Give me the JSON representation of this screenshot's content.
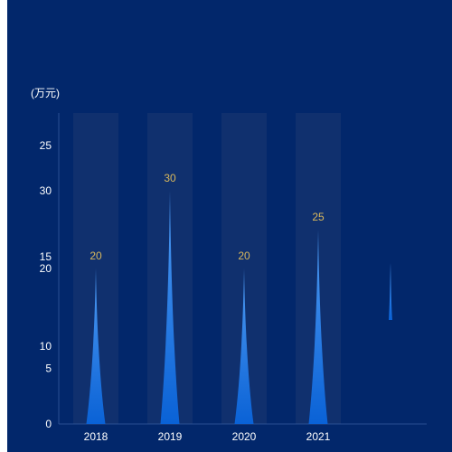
{
  "chart_data": {
    "type": "bar",
    "unit_label": "(万元)",
    "categories": [
      "2018",
      "2019",
      "2020",
      "2021"
    ],
    "series": [
      {
        "values": [
          20,
          30,
          20,
          25
        ],
        "shape": "pictorial-spike"
      }
    ],
    "data_labels": [
      "20",
      "30",
      "20",
      "25"
    ],
    "y_axis_ticks_left": [
      "0",
      "10",
      "20",
      "30"
    ],
    "y_axis_ticks_overlay": [
      "5",
      "15",
      "25"
    ],
    "ylim": [
      0,
      40
    ],
    "grid": false,
    "legend": "none",
    "colors": {
      "background": "#02276b",
      "band": "#10306e",
      "spike_top": "#4f9bf2",
      "spike_bottom": "#0a62d6",
      "label": "#d9b85c",
      "axis": "#2a4f93",
      "text": "#ffffff"
    }
  }
}
